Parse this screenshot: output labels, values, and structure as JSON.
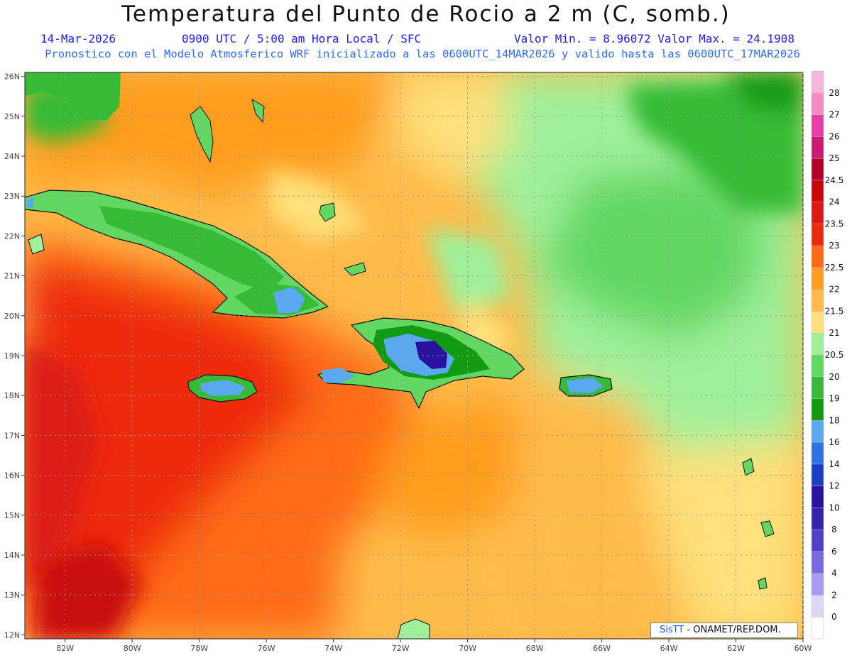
{
  "header": {
    "title": "Temperatura del Punto de Rocio a 2 m (C, somb.)",
    "date": "14-Mar-2026",
    "time_info": "0900 UTC / 5:00 am Hora Local / SFC",
    "min_max": "Valor Min. = 8.96072  Valor Max. = 24.1908",
    "model_info": "Pronostico con el Modelo Atmosferico WRF inicializado a las 0600UTC_14MAR2026 y valido hasta las  0600UTC_17MAR2026"
  },
  "map": {
    "lon_range": [
      -83.2,
      -60
    ],
    "lat_range": [
      11.9,
      26.1
    ],
    "lon_ticks": [
      "82W",
      "80W",
      "78W",
      "76W",
      "74W",
      "72W",
      "70W",
      "68W",
      "66W",
      "64W",
      "62W",
      "60W"
    ],
    "lat_ticks": [
      "12N",
      "13N",
      "14N",
      "15N",
      "16N",
      "17N",
      "18N",
      "19N",
      "20N",
      "21N",
      "22N",
      "23N",
      "24N",
      "25N",
      "26N"
    ],
    "grid": true
  },
  "legend": {
    "labels": [
      "0",
      "2",
      "4",
      "6",
      "8",
      "10",
      "12",
      "14",
      "16",
      "18",
      "19",
      "20",
      "20.5",
      "21",
      "21.5",
      "22",
      "22.5",
      "23",
      "23.5",
      "24",
      "24.5",
      "25",
      "26",
      "27",
      "28"
    ],
    "colors": [
      "#ffffff",
      "#d9d9f7",
      "#a79cf2",
      "#7a6ae0",
      "#5040c8",
      "#3324aa",
      "#2a12a0",
      "#1a3fc4",
      "#2d72e6",
      "#5aa8f0",
      "#139a13",
      "#36bb36",
      "#62d862",
      "#9ff09a",
      "#ffe07a",
      "#ffbb4a",
      "#ff9c1e",
      "#ff6a12",
      "#ee2a0e",
      "#dc1a14",
      "#c80808",
      "#b00028",
      "#cc1a74",
      "#e83ca8",
      "#f58cc8",
      "#f6b6dc"
    ]
  },
  "credit": {
    "sis": "SisTT",
    "org": "- ONAMET/REP.DOM."
  }
}
